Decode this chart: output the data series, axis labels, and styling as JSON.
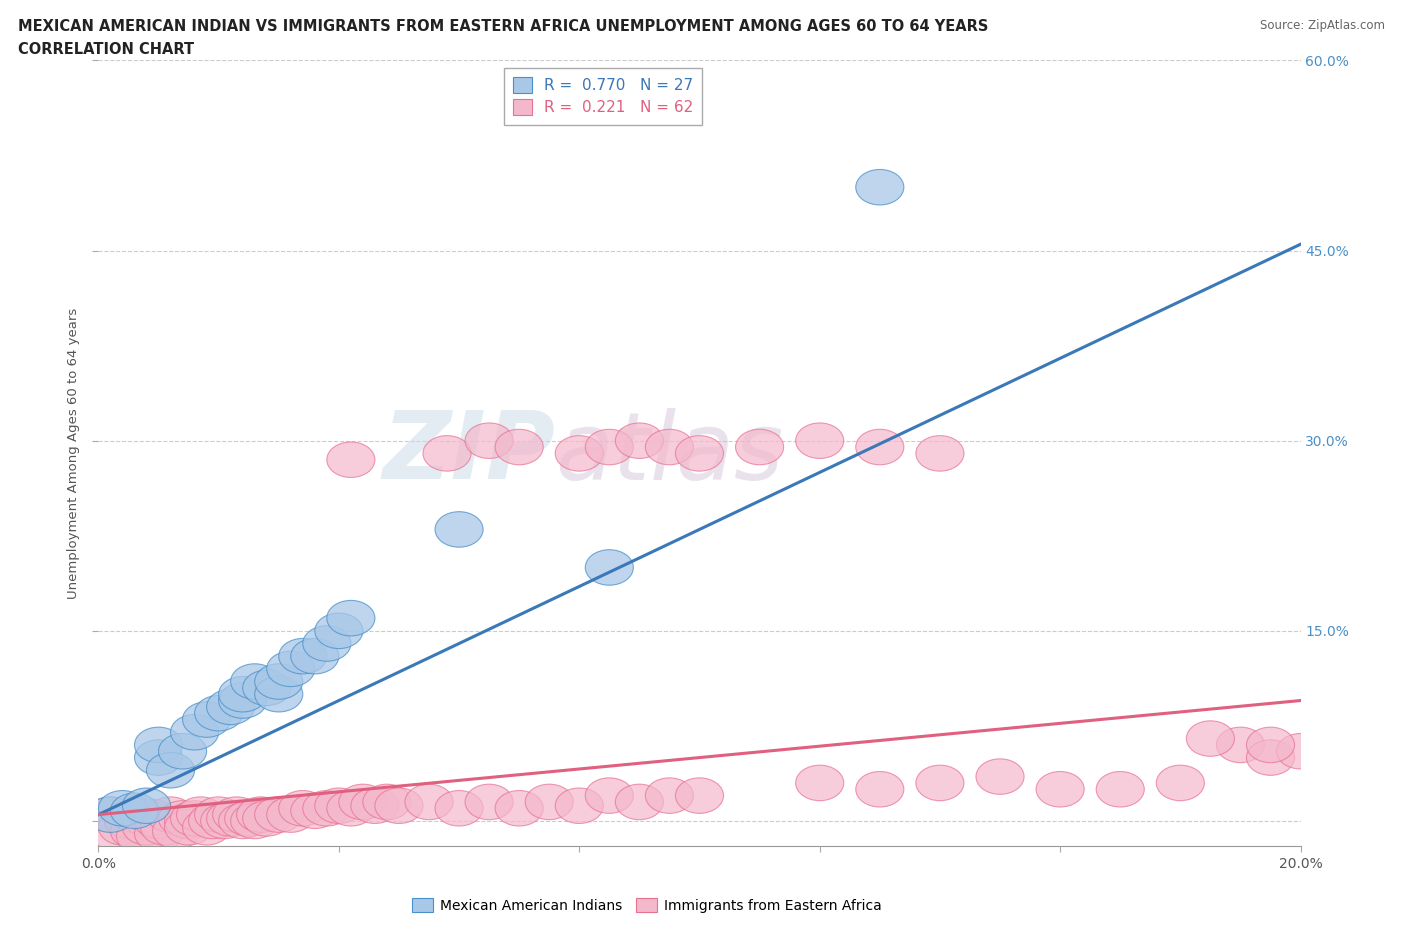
{
  "title_line1": "MEXICAN AMERICAN INDIAN VS IMMIGRANTS FROM EASTERN AFRICA UNEMPLOYMENT AMONG AGES 60 TO 64 YEARS",
  "title_line2": "CORRELATION CHART",
  "source_text": "Source: ZipAtlas.com",
  "ylabel": "Unemployment Among Ages 60 to 64 years",
  "xlim": [
    0.0,
    0.2
  ],
  "ylim": [
    -0.02,
    0.6
  ],
  "xticks": [
    0.0,
    0.04,
    0.08,
    0.12,
    0.16,
    0.2
  ],
  "yticks": [
    0.0,
    0.15,
    0.3,
    0.45,
    0.6
  ],
  "watermark_zip": "ZIP",
  "watermark_atlas": "atlas",
  "blue_color": "#a8c8e8",
  "pink_color": "#f4b8cc",
  "blue_edge_color": "#4a90c8",
  "pink_edge_color": "#e87090",
  "blue_line_color": "#3a78b8",
  "pink_line_color": "#e06080",
  "right_label_color": "#4a90c8",
  "legend_R1": "0.770",
  "legend_N1": "27",
  "legend_R2": "0.221",
  "legend_N2": "62",
  "blue_scatter_x": [
    0.002,
    0.004,
    0.006,
    0.008,
    0.01,
    0.01,
    0.012,
    0.014,
    0.016,
    0.018,
    0.02,
    0.022,
    0.024,
    0.024,
    0.026,
    0.028,
    0.03,
    0.03,
    0.032,
    0.034,
    0.036,
    0.038,
    0.04,
    0.042,
    0.06,
    0.085,
    0.13
  ],
  "blue_scatter_y": [
    0.005,
    0.01,
    0.008,
    0.012,
    0.05,
    0.06,
    0.04,
    0.055,
    0.07,
    0.08,
    0.085,
    0.09,
    0.095,
    0.1,
    0.11,
    0.105,
    0.1,
    0.11,
    0.12,
    0.13,
    0.13,
    0.14,
    0.15,
    0.16,
    0.23,
    0.2,
    0.5
  ],
  "pink_scatter_x": [
    0.002,
    0.003,
    0.004,
    0.005,
    0.006,
    0.006,
    0.007,
    0.008,
    0.008,
    0.009,
    0.01,
    0.01,
    0.011,
    0.012,
    0.013,
    0.014,
    0.015,
    0.015,
    0.016,
    0.017,
    0.018,
    0.019,
    0.02,
    0.021,
    0.022,
    0.023,
    0.024,
    0.025,
    0.026,
    0.027,
    0.028,
    0.03,
    0.032,
    0.034,
    0.036,
    0.038,
    0.04,
    0.042,
    0.044,
    0.046,
    0.048,
    0.05,
    0.055,
    0.06,
    0.065,
    0.07,
    0.075,
    0.08,
    0.085,
    0.09,
    0.095,
    0.1,
    0.12,
    0.13,
    0.14,
    0.15,
    0.16,
    0.17,
    0.18,
    0.19,
    0.195,
    0.2
  ],
  "pink_scatter_y": [
    0.005,
    -0.01,
    -0.005,
    0.0,
    -0.008,
    0.005,
    -0.012,
    0.002,
    -0.005,
    0.003,
    -0.01,
    0.0,
    -0.005,
    0.005,
    -0.008,
    0.002,
    0.0,
    -0.005,
    0.002,
    0.005,
    -0.005,
    0.0,
    0.005,
    0.0,
    0.002,
    0.005,
    0.0,
    0.002,
    0.0,
    0.005,
    0.002,
    0.005,
    0.005,
    0.01,
    0.008,
    0.01,
    0.012,
    0.01,
    0.015,
    0.012,
    0.015,
    0.012,
    0.015,
    0.01,
    0.015,
    0.01,
    0.015,
    0.012,
    0.02,
    0.015,
    0.02,
    0.02,
    0.03,
    0.025,
    0.03,
    0.035,
    0.025,
    0.025,
    0.03,
    0.06,
    0.05,
    0.055
  ],
  "pink_scatter_x2": [
    0.042,
    0.058,
    0.065,
    0.07,
    0.08,
    0.085,
    0.09,
    0.095,
    0.1,
    0.11,
    0.12,
    0.13,
    0.14,
    0.185,
    0.195
  ],
  "pink_scatter_y2": [
    0.285,
    0.29,
    0.3,
    0.295,
    0.29,
    0.295,
    0.3,
    0.295,
    0.29,
    0.295,
    0.3,
    0.295,
    0.29,
    0.065,
    0.06
  ],
  "blue_trendline_x": [
    0.0,
    0.2
  ],
  "blue_trendline_y": [
    0.005,
    0.455
  ],
  "pink_trendline_x": [
    0.0,
    0.2
  ],
  "pink_trendline_y": [
    0.005,
    0.095
  ]
}
